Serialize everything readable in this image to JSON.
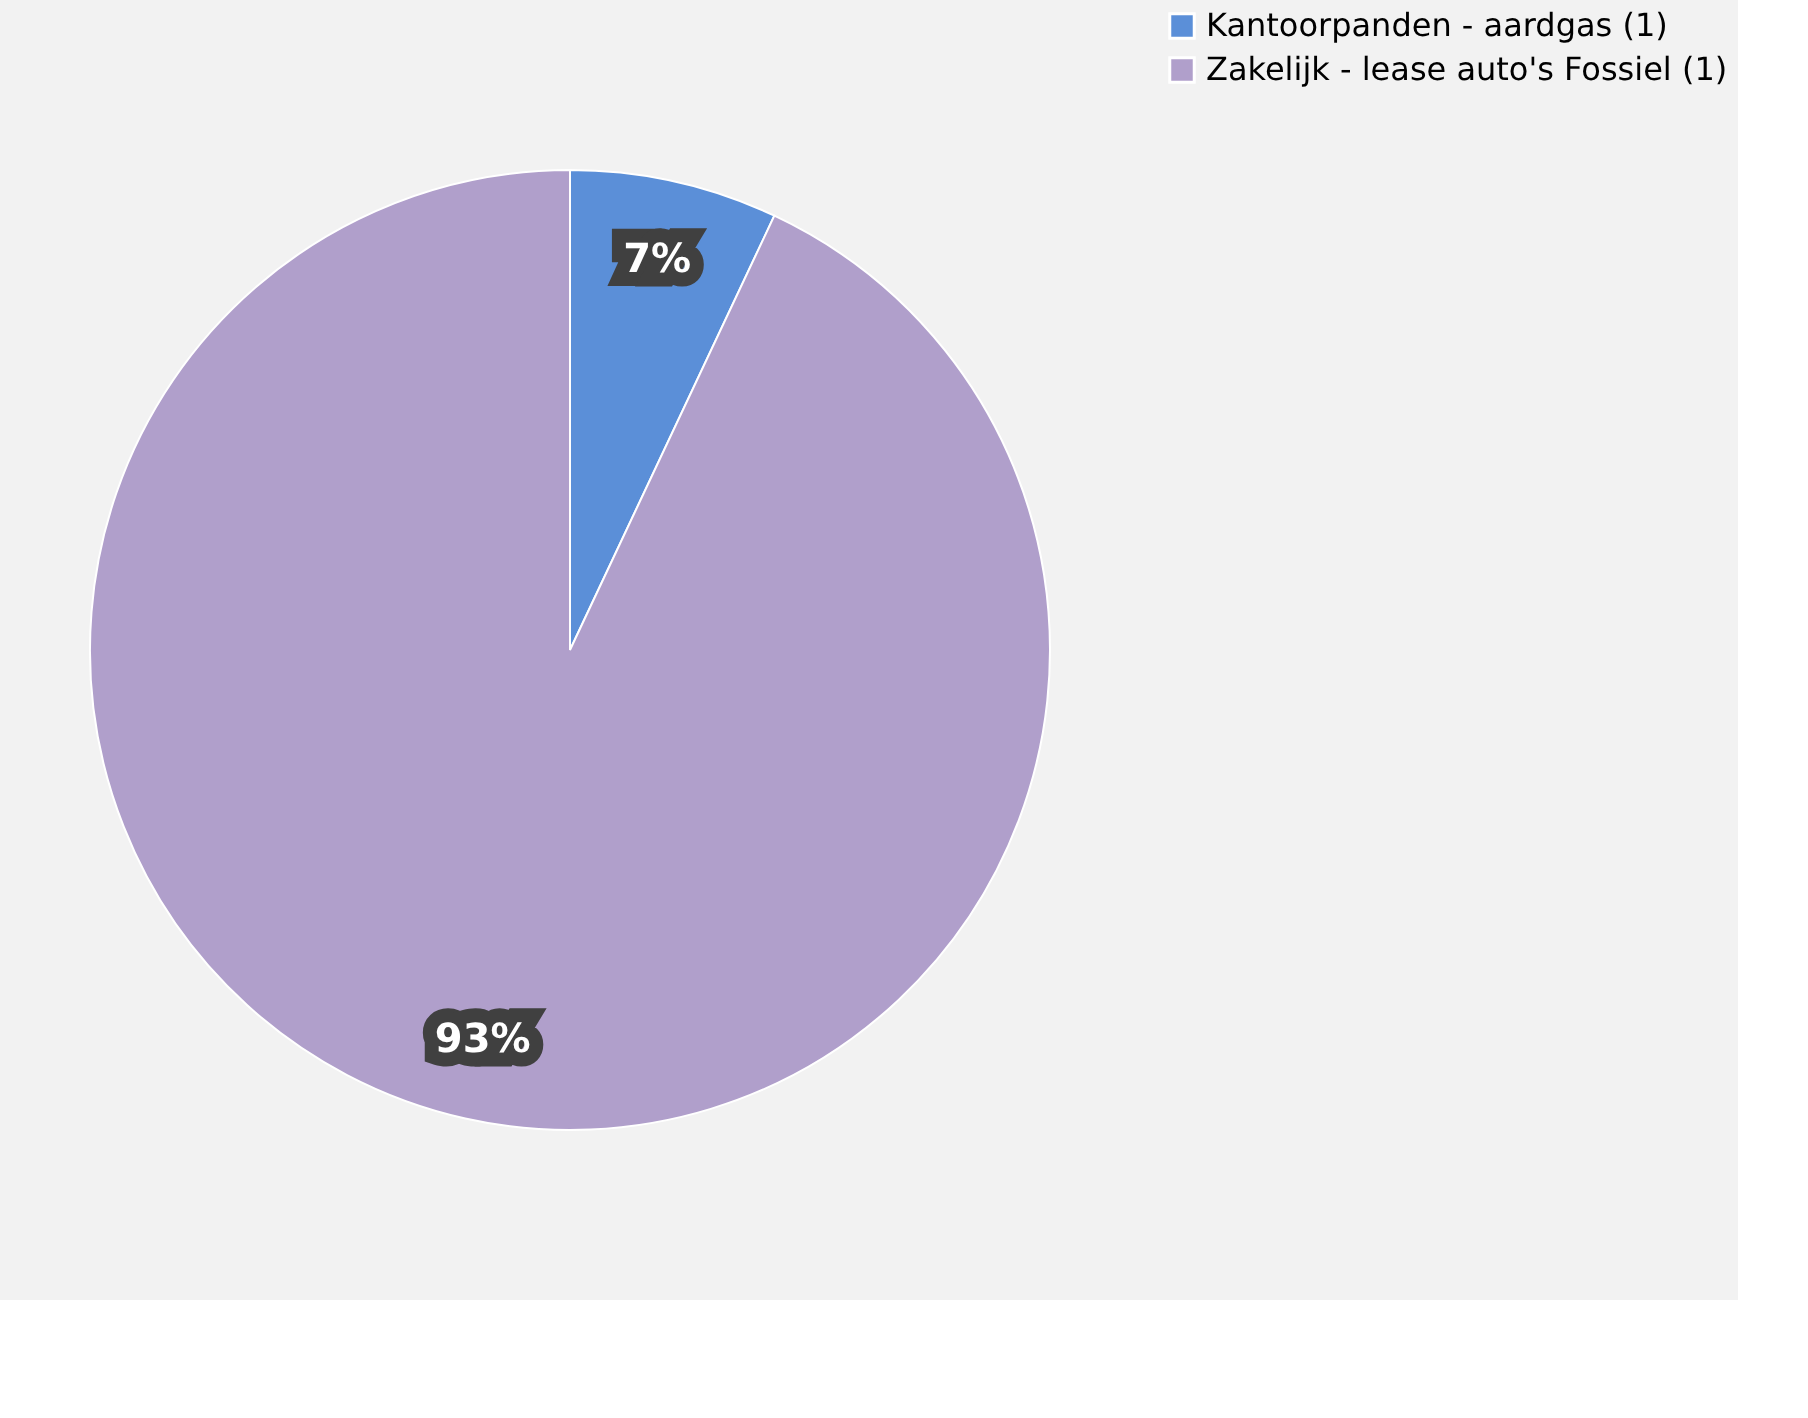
{
  "chart_data": {
    "type": "pie",
    "categories": [
      "Kantoorpanden - aardgas (1)",
      "Zakelijk - lease auto's Fossiel (1)"
    ],
    "values": [
      7,
      93
    ],
    "colors": [
      "#5b8fd8",
      "#b09fcb"
    ],
    "value_labels": [
      "7%",
      "93%"
    ],
    "legend": "right"
  }
}
